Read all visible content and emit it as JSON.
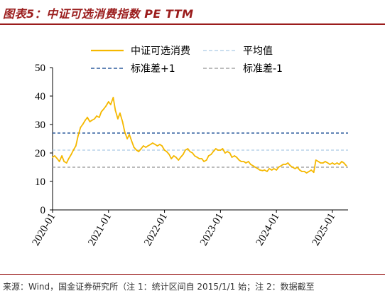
{
  "title": "图表5：中证可选消费指数 PE TTM",
  "source": "来源：Wind，国金证券研究所（注 1：统计区间自 2015/1/1 始；注 2：数据截至",
  "chart_data": {
    "type": "line",
    "title": "图表5：中证可选消费指数 PE TTM",
    "xlabel": "",
    "ylabel": "",
    "ylim": [
      0,
      50
    ],
    "yticks": [
      "0",
      "10",
      "20",
      "30",
      "40",
      "50"
    ],
    "xticks": [
      "2020-01",
      "2021-01",
      "2022-01",
      "2023-01",
      "2024-01",
      "2025-01"
    ],
    "xlim": [
      "2020-01",
      "2025-04"
    ],
    "grid": false,
    "legend_position": "top",
    "series": [
      {
        "name": "中证可选消费",
        "color": "#f5b800",
        "style": "solid",
        "points": [
          [
            "2020-01",
            18.5
          ],
          [
            "2020-01-15",
            19.0
          ],
          [
            "2020-02",
            18.0
          ],
          [
            "2020-02-15",
            17.0
          ],
          [
            "2020-03",
            19.0
          ],
          [
            "2020-03-15",
            17.0
          ],
          [
            "2020-04",
            16.5
          ],
          [
            "2020-04-15",
            18.0
          ],
          [
            "2020-05",
            19.5
          ],
          [
            "2020-05-15",
            21.0
          ],
          [
            "2020-06",
            22.5
          ],
          [
            "2020-06-15",
            26.0
          ],
          [
            "2020-07",
            29.0
          ],
          [
            "2020-07-15",
            30.0
          ],
          [
            "2020-08",
            31.5
          ],
          [
            "2020-08-15",
            32.5
          ],
          [
            "2020-09",
            31.0
          ],
          [
            "2020-09-15",
            31.5
          ],
          [
            "2020-10",
            32.0
          ],
          [
            "2020-10-15",
            33.0
          ],
          [
            "2020-11",
            32.5
          ],
          [
            "2020-11-15",
            34.5
          ],
          [
            "2020-12",
            35.5
          ],
          [
            "2020-12-15",
            36.5
          ],
          [
            "2021-01",
            38.0
          ],
          [
            "2021-01-15",
            37.0
          ],
          [
            "2021-02",
            39.5
          ],
          [
            "2021-02-15",
            35.0
          ],
          [
            "2021-03",
            32.0
          ],
          [
            "2021-03-15",
            34.0
          ],
          [
            "2021-04",
            31.0
          ],
          [
            "2021-04-15",
            27.5
          ],
          [
            "2021-05",
            25.0
          ],
          [
            "2021-05-15",
            26.5
          ],
          [
            "2021-06",
            24.0
          ],
          [
            "2021-06-15",
            22.0
          ],
          [
            "2021-07",
            21.0
          ],
          [
            "2021-07-15",
            20.5
          ],
          [
            "2021-08",
            21.5
          ],
          [
            "2021-08-15",
            22.5
          ],
          [
            "2021-09",
            22.0
          ],
          [
            "2021-09-15",
            22.5
          ],
          [
            "2021-10",
            23.0
          ],
          [
            "2021-10-15",
            23.5
          ],
          [
            "2021-11",
            23.0
          ],
          [
            "2021-11-15",
            22.5
          ],
          [
            "2021-12",
            23.0
          ],
          [
            "2021-12-15",
            22.5
          ],
          [
            "2022-01",
            21.0
          ],
          [
            "2022-01-15",
            20.5
          ],
          [
            "2022-02",
            19.5
          ],
          [
            "2022-02-15",
            18.0
          ],
          [
            "2022-03",
            19.0
          ],
          [
            "2022-03-15",
            18.5
          ],
          [
            "2022-04",
            17.5
          ],
          [
            "2022-04-15",
            18.5
          ],
          [
            "2022-05",
            19.5
          ],
          [
            "2022-05-15",
            21.0
          ],
          [
            "2022-06",
            21.5
          ],
          [
            "2022-06-15",
            20.5
          ],
          [
            "2022-07",
            20.0
          ],
          [
            "2022-07-15",
            19.0
          ],
          [
            "2022-08",
            18.5
          ],
          [
            "2022-08-15",
            18.0
          ],
          [
            "2022-09",
            18.0
          ],
          [
            "2022-09-15",
            17.0
          ],
          [
            "2022-10",
            17.5
          ],
          [
            "2022-10-15",
            19.0
          ],
          [
            "2022-11",
            19.5
          ],
          [
            "2022-11-15",
            20.5
          ],
          [
            "2022-12",
            21.5
          ],
          [
            "2022-12-15",
            21.0
          ],
          [
            "2023-01",
            21.0
          ],
          [
            "2023-01-15",
            21.5
          ],
          [
            "2023-02",
            20.0
          ],
          [
            "2023-02-15",
            20.5
          ],
          [
            "2023-03",
            20.0
          ],
          [
            "2023-03-15",
            18.5
          ],
          [
            "2023-04",
            19.0
          ],
          [
            "2023-04-15",
            18.5
          ],
          [
            "2023-05",
            17.5
          ],
          [
            "2023-05-15",
            17.0
          ],
          [
            "2023-06",
            17.0
          ],
          [
            "2023-06-15",
            16.5
          ],
          [
            "2023-07",
            17.0
          ],
          [
            "2023-07-15",
            16.0
          ],
          [
            "2023-08",
            15.5
          ],
          [
            "2023-08-15",
            15.0
          ],
          [
            "2023-09",
            14.5
          ],
          [
            "2023-09-15",
            14.0
          ],
          [
            "2023-10",
            13.8
          ],
          [
            "2023-10-15",
            14.0
          ],
          [
            "2023-11",
            13.5
          ],
          [
            "2023-11-15",
            14.5
          ],
          [
            "2023-12",
            14.0
          ],
          [
            "2023-12-15",
            14.5
          ],
          [
            "2024-01",
            14.0
          ],
          [
            "2024-01-15",
            15.0
          ],
          [
            "2024-02",
            15.5
          ],
          [
            "2024-02-15",
            16.0
          ],
          [
            "2024-03",
            16.0
          ],
          [
            "2024-03-15",
            16.5
          ],
          [
            "2024-04",
            15.5
          ],
          [
            "2024-04-15",
            15.0
          ],
          [
            "2024-05",
            14.5
          ],
          [
            "2024-05-15",
            15.0
          ],
          [
            "2024-06",
            14.0
          ],
          [
            "2024-06-15",
            13.5
          ],
          [
            "2024-07",
            13.5
          ],
          [
            "2024-07-15",
            13.0
          ],
          [
            "2024-08",
            13.5
          ],
          [
            "2024-08-15",
            14.0
          ],
          [
            "2024-09",
            13.2
          ],
          [
            "2024-09-15",
            17.5
          ],
          [
            "2024-10",
            17.0
          ],
          [
            "2024-10-15",
            16.5
          ],
          [
            "2024-11",
            16.5
          ],
          [
            "2024-11-15",
            17.0
          ],
          [
            "2024-12",
            16.5
          ],
          [
            "2024-12-15",
            16.0
          ],
          [
            "2025-01",
            16.5
          ],
          [
            "2025-01-15",
            16.0
          ],
          [
            "2025-02",
            16.5
          ],
          [
            "2025-02-15",
            16.0
          ],
          [
            "2025-03",
            17.0
          ],
          [
            "2025-03-15",
            16.5
          ],
          [
            "2025-04",
            15.5
          ]
        ]
      },
      {
        "name": "平均值",
        "color": "#b8d4ea",
        "style": "dashed",
        "value": 21.0
      },
      {
        "name": "标准差+1",
        "color": "#2e5d9e",
        "style": "dashed",
        "value": 27.0
      },
      {
        "name": "标准差-1",
        "color": "#a6a6a6",
        "style": "dashed",
        "value": 15.0
      }
    ]
  }
}
